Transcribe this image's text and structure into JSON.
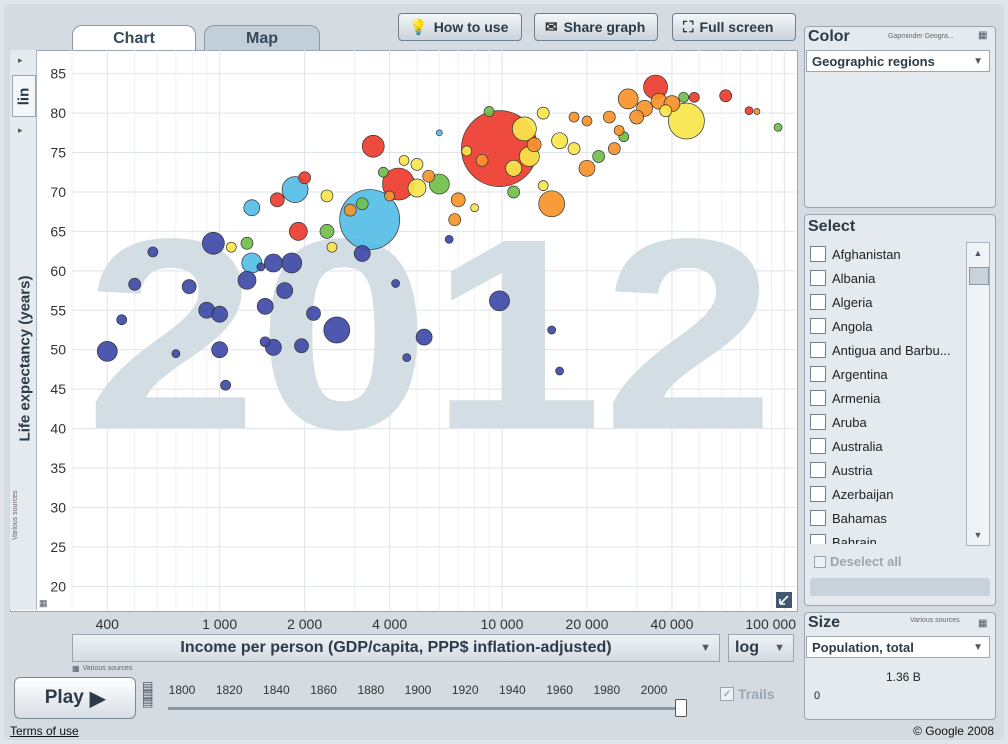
{
  "tabs": {
    "chart": "Chart",
    "map": "Map"
  },
  "toolbar": {
    "how_to_use": "How to use",
    "share_graph": "Share graph",
    "full_screen": "Full screen"
  },
  "y_axis": {
    "scale": "lin",
    "label": "Life expectancy (years)",
    "source": "Various sources"
  },
  "x_axis": {
    "indicator": "Income per person (GDP/capita, PPP$ inflation-adjusted)",
    "scale": "log",
    "source": "Various sources"
  },
  "chart_data": {
    "type": "scatter",
    "year_watermark": "2012",
    "xlabel": "Income per person (GDP/capita, PPP$ inflation-adjusted)",
    "ylabel": "Life expectancy (years)",
    "x_scale": "log",
    "xlim": [
      300,
      110000
    ],
    "ylim": [
      17,
      88
    ],
    "x_ticks": [
      {
        "v": 400,
        "t": "400"
      },
      {
        "v": 1000,
        "t": "1 000"
      },
      {
        "v": 2000,
        "t": "2 000"
      },
      {
        "v": 4000,
        "t": "4 000"
      },
      {
        "v": 10000,
        "t": "10 000"
      },
      {
        "v": 20000,
        "t": "20 000"
      },
      {
        "v": 40000,
        "t": "40 000"
      },
      {
        "v": 100000,
        "t": "100 000"
      }
    ],
    "y_ticks": [
      20,
      25,
      30,
      35,
      40,
      45,
      50,
      55,
      60,
      65,
      70,
      75,
      80,
      85
    ],
    "region_colors": {
      "africa": "#3f4aa8",
      "south_asia": "#55bde6",
      "east_asia": "#ee3b2e",
      "americas": "#f7e54a",
      "europe": "#f7922a",
      "middle_east": "#70c04a"
    },
    "grid": true,
    "bubbles": [
      {
        "x": 9800,
        "y": 75.5,
        "r": 38,
        "c": "east_asia"
      },
      {
        "x": 3400,
        "y": 66.5,
        "r": 30,
        "c": "south_asia"
      },
      {
        "x": 2600,
        "y": 52.5,
        "r": 13,
        "c": "africa"
      },
      {
        "x": 400,
        "y": 49.8,
        "r": 10,
        "c": "africa"
      },
      {
        "x": 950,
        "y": 63.5,
        "r": 11,
        "c": "africa"
      },
      {
        "x": 1850,
        "y": 70.3,
        "r": 13,
        "c": "south_asia"
      },
      {
        "x": 45000,
        "y": 79,
        "r": 18,
        "c": "americas"
      },
      {
        "x": 35000,
        "y": 83.3,
        "r": 12,
        "c": "east_asia"
      },
      {
        "x": 15000,
        "y": 68.5,
        "r": 13,
        "c": "europe"
      },
      {
        "x": 12000,
        "y": 78,
        "r": 12,
        "c": "americas"
      },
      {
        "x": 4300,
        "y": 71,
        "r": 16,
        "c": "east_asia"
      },
      {
        "x": 5000,
        "y": 70.5,
        "r": 9,
        "c": "americas"
      },
      {
        "x": 6000,
        "y": 71,
        "r": 10,
        "c": "middle_east"
      },
      {
        "x": 3500,
        "y": 75.8,
        "r": 11,
        "c": "east_asia"
      },
      {
        "x": 9800,
        "y": 56.2,
        "r": 10,
        "c": "africa"
      },
      {
        "x": 1300,
        "y": 61,
        "r": 10,
        "c": "south_asia"
      },
      {
        "x": 1800,
        "y": 61,
        "r": 10,
        "c": "africa"
      },
      {
        "x": 1550,
        "y": 61,
        "r": 9,
        "c": "africa"
      },
      {
        "x": 1250,
        "y": 58.8,
        "r": 9,
        "c": "africa"
      },
      {
        "x": 1450,
        "y": 55.5,
        "r": 8,
        "c": "africa"
      },
      {
        "x": 1700,
        "y": 57.5,
        "r": 8,
        "c": "africa"
      },
      {
        "x": 1000,
        "y": 50,
        "r": 8,
        "c": "africa"
      },
      {
        "x": 900,
        "y": 55,
        "r": 8,
        "c": "africa"
      },
      {
        "x": 1000,
        "y": 54.5,
        "r": 8,
        "c": "africa"
      },
      {
        "x": 1950,
        "y": 50.5,
        "r": 7,
        "c": "africa"
      },
      {
        "x": 1550,
        "y": 50.3,
        "r": 8,
        "c": "africa"
      },
      {
        "x": 2150,
        "y": 54.6,
        "r": 7,
        "c": "africa"
      },
      {
        "x": 3200,
        "y": 62.2,
        "r": 8,
        "c": "africa"
      },
      {
        "x": 5300,
        "y": 51.6,
        "r": 8,
        "c": "africa"
      },
      {
        "x": 780,
        "y": 58,
        "r": 7,
        "c": "africa"
      },
      {
        "x": 500,
        "y": 58.3,
        "r": 6,
        "c": "africa"
      },
      {
        "x": 450,
        "y": 53.8,
        "r": 5,
        "c": "africa"
      },
      {
        "x": 580,
        "y": 62.4,
        "r": 5,
        "c": "africa"
      },
      {
        "x": 1050,
        "y": 45.5,
        "r": 5,
        "c": "africa"
      },
      {
        "x": 1450,
        "y": 51,
        "r": 5,
        "c": "africa"
      },
      {
        "x": 16000,
        "y": 47.3,
        "r": 4,
        "c": "africa"
      },
      {
        "x": 15000,
        "y": 52.5,
        "r": 4,
        "c": "africa"
      },
      {
        "x": 6500,
        "y": 64,
        "r": 4,
        "c": "africa"
      },
      {
        "x": 1300,
        "y": 68,
        "r": 8,
        "c": "south_asia"
      },
      {
        "x": 1250,
        "y": 63.5,
        "r": 6,
        "c": "middle_east"
      },
      {
        "x": 1600,
        "y": 69,
        "r": 7,
        "c": "east_asia"
      },
      {
        "x": 2000,
        "y": 71.8,
        "r": 6,
        "c": "east_asia"
      },
      {
        "x": 2400,
        "y": 65,
        "r": 7,
        "c": "middle_east"
      },
      {
        "x": 1900,
        "y": 65,
        "r": 9,
        "c": "east_asia"
      },
      {
        "x": 2400,
        "y": 69.5,
        "r": 6,
        "c": "americas"
      },
      {
        "x": 2900,
        "y": 67.7,
        "r": 6,
        "c": "europe"
      },
      {
        "x": 5000,
        "y": 73.5,
        "r": 6,
        "c": "americas"
      },
      {
        "x": 6800,
        "y": 66.5,
        "r": 6,
        "c": "europe"
      },
      {
        "x": 7000,
        "y": 69,
        "r": 7,
        "c": "europe"
      },
      {
        "x": 11000,
        "y": 70,
        "r": 6,
        "c": "middle_east"
      },
      {
        "x": 14000,
        "y": 70.8,
        "r": 5,
        "c": "americas"
      },
      {
        "x": 16000,
        "y": 76.5,
        "r": 8,
        "c": "americas"
      },
      {
        "x": 18000,
        "y": 75.5,
        "r": 6,
        "c": "americas"
      },
      {
        "x": 20000,
        "y": 73,
        "r": 8,
        "c": "europe"
      },
      {
        "x": 22000,
        "y": 74.5,
        "r": 6,
        "c": "middle_east"
      },
      {
        "x": 25000,
        "y": 75.5,
        "r": 6,
        "c": "europe"
      },
      {
        "x": 27000,
        "y": 77,
        "r": 5,
        "c": "middle_east"
      },
      {
        "x": 28000,
        "y": 81.8,
        "r": 10,
        "c": "europe"
      },
      {
        "x": 32000,
        "y": 80.6,
        "r": 8,
        "c": "europe"
      },
      {
        "x": 36000,
        "y": 81.5,
        "r": 8,
        "c": "europe"
      },
      {
        "x": 40000,
        "y": 81.2,
        "r": 8,
        "c": "europe"
      },
      {
        "x": 38000,
        "y": 80.3,
        "r": 6,
        "c": "americas"
      },
      {
        "x": 30000,
        "y": 79.5,
        "r": 7,
        "c": "europe"
      },
      {
        "x": 24000,
        "y": 79.5,
        "r": 6,
        "c": "europe"
      },
      {
        "x": 20000,
        "y": 79,
        "r": 5,
        "c": "europe"
      },
      {
        "x": 14000,
        "y": 80,
        "r": 6,
        "c": "americas"
      },
      {
        "x": 9000,
        "y": 80.2,
        "r": 5,
        "c": "middle_east"
      },
      {
        "x": 7500,
        "y": 75.2,
        "r": 5,
        "c": "americas"
      },
      {
        "x": 12500,
        "y": 74.5,
        "r": 10,
        "c": "americas"
      },
      {
        "x": 11000,
        "y": 73,
        "r": 8,
        "c": "americas"
      },
      {
        "x": 8500,
        "y": 74,
        "r": 6,
        "c": "europe"
      },
      {
        "x": 13000,
        "y": 76,
        "r": 7,
        "c": "europe"
      },
      {
        "x": 5500,
        "y": 72,
        "r": 6,
        "c": "europe"
      },
      {
        "x": 4500,
        "y": 74,
        "r": 5,
        "c": "americas"
      },
      {
        "x": 3800,
        "y": 72.5,
        "r": 5,
        "c": "middle_east"
      },
      {
        "x": 4000,
        "y": 69.5,
        "r": 5,
        "c": "europe"
      },
      {
        "x": 3200,
        "y": 68.5,
        "r": 6,
        "c": "middle_east"
      },
      {
        "x": 2500,
        "y": 63,
        "r": 5,
        "c": "americas"
      },
      {
        "x": 1100,
        "y": 63,
        "r": 5,
        "c": "americas"
      },
      {
        "x": 62000,
        "y": 82.2,
        "r": 6,
        "c": "east_asia"
      },
      {
        "x": 44000,
        "y": 82,
        "r": 5,
        "c": "middle_east"
      },
      {
        "x": 48000,
        "y": 82,
        "r": 5,
        "c": "east_asia"
      },
      {
        "x": 75000,
        "y": 80.3,
        "r": 4,
        "c": "east_asia"
      },
      {
        "x": 80000,
        "y": 80.2,
        "r": 3,
        "c": "europe"
      },
      {
        "x": 95000,
        "y": 78.2,
        "r": 4,
        "c": "middle_east"
      },
      {
        "x": 18000,
        "y": 79.5,
        "r": 5,
        "c": "europe"
      },
      {
        "x": 26000,
        "y": 77.8,
        "r": 5,
        "c": "europe"
      },
      {
        "x": 6000,
        "y": 77.5,
        "r": 3,
        "c": "south_asia"
      },
      {
        "x": 8000,
        "y": 68,
        "r": 4,
        "c": "americas"
      },
      {
        "x": 4200,
        "y": 58.4,
        "r": 4,
        "c": "africa"
      },
      {
        "x": 4600,
        "y": 49,
        "r": 4,
        "c": "africa"
      },
      {
        "x": 700,
        "y": 49.5,
        "r": 4,
        "c": "africa"
      },
      {
        "x": 1400,
        "y": 60.5,
        "r": 4,
        "c": "africa"
      }
    ]
  },
  "play": {
    "label": "Play"
  },
  "timeline": {
    "years": [
      "1800",
      "1820",
      "1840",
      "1860",
      "1880",
      "1900",
      "1920",
      "1940",
      "1960",
      "1980",
      "2000"
    ],
    "current": "2012"
  },
  "trails": {
    "label": "Trails"
  },
  "color_panel": {
    "title": "Color",
    "source": "Gapminder Geogra...",
    "value": "Geographic regions"
  },
  "select_panel": {
    "title": "Select",
    "countries": [
      "Afghanistan",
      "Albania",
      "Algeria",
      "Angola",
      "Antigua and Barbu...",
      "Argentina",
      "Armenia",
      "Aruba",
      "Australia",
      "Austria",
      "Azerbaijan",
      "Bahamas",
      "Bahrain"
    ],
    "deselect_all": "Deselect all"
  },
  "size_panel": {
    "title": "Size",
    "source": "Various sources",
    "value": "Population, total",
    "min": "0",
    "max": "1.36 B"
  },
  "footer": {
    "terms": "Terms of use",
    "copyright": "© Google 2008"
  }
}
